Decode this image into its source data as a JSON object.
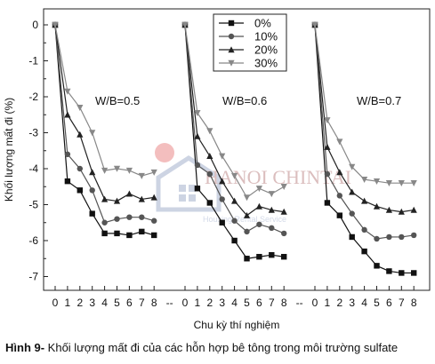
{
  "chart_data": {
    "type": "line",
    "ylabel": "Khối lượng mất đi (%)",
    "xlabel": "Chu kỳ thí nghiệm",
    "ylim": [
      -7.5,
      0.2
    ],
    "yticks": [
      0,
      -1,
      -2,
      -3,
      -4,
      -5,
      -6,
      -7
    ],
    "x_ticks": [
      "0",
      "1",
      "2",
      "3",
      "4",
      "5",
      "6",
      "7",
      "8"
    ],
    "break_label": "--",
    "legend": {
      "placement": "top-center",
      "entries": [
        "0%",
        "10%",
        "20%",
        "30%"
      ]
    },
    "series_styles": [
      {
        "name": "0%",
        "color": "#111111",
        "marker": "square"
      },
      {
        "name": "10%",
        "color": "#555555",
        "marker": "circle"
      },
      {
        "name": "20%",
        "color": "#222222",
        "marker": "triangle-up"
      },
      {
        "name": "30%",
        "color": "#888888",
        "marker": "triangle-down"
      }
    ],
    "panels": [
      {
        "label": "W/B=0.5",
        "series": [
          {
            "name": "0%",
            "values": [
              0,
              -4.35,
              -4.6,
              -5.25,
              -5.8,
              -5.8,
              -5.85,
              -5.75,
              -5.85
            ]
          },
          {
            "name": "10%",
            "values": [
              0,
              -3.6,
              -4.0,
              -4.6,
              -5.5,
              -5.4,
              -5.35,
              -5.35,
              -5.45
            ]
          },
          {
            "name": "20%",
            "values": [
              0,
              -2.5,
              -3.05,
              -4.1,
              -4.85,
              -4.9,
              -4.7,
              -4.85,
              -4.8
            ]
          },
          {
            "name": "30%",
            "values": [
              0,
              -1.85,
              -2.3,
              -3.0,
              -4.05,
              -4.0,
              -4.05,
              -4.2,
              -4.1
            ]
          }
        ]
      },
      {
        "label": "W/B=0.6",
        "series": [
          {
            "name": "0%",
            "values": [
              0,
              -4.55,
              -4.95,
              -5.5,
              -6.0,
              -6.5,
              -6.45,
              -6.4,
              -6.45
            ]
          },
          {
            "name": "10%",
            "values": [
              0,
              -3.9,
              -4.15,
              -4.85,
              -5.45,
              -5.75,
              -5.55,
              -5.65,
              -5.8
            ]
          },
          {
            "name": "20%",
            "values": [
              0,
              -3.1,
              -3.65,
              -4.35,
              -4.9,
              -5.3,
              -5.05,
              -5.15,
              -5.2
            ]
          },
          {
            "name": "30%",
            "values": [
              0,
              -2.45,
              -2.95,
              -3.65,
              -4.2,
              -4.8,
              -4.55,
              -4.7,
              -4.5
            ]
          }
        ]
      },
      {
        "label": "W/B=0.7",
        "series": [
          {
            "name": "0%",
            "values": [
              0,
              -4.95,
              -5.3,
              -5.9,
              -6.3,
              -6.7,
              -6.85,
              -6.9,
              -6.9
            ]
          },
          {
            "name": "10%",
            "values": [
              0,
              -4.15,
              -4.75,
              -5.25,
              -5.7,
              -5.95,
              -5.9,
              -5.9,
              -5.85
            ]
          },
          {
            "name": "20%",
            "values": [
              0,
              -3.4,
              -4.1,
              -4.65,
              -4.9,
              -5.05,
              -5.15,
              -5.2,
              -5.15
            ]
          },
          {
            "name": "30%",
            "values": [
              0,
              -2.65,
              -3.25,
              -3.95,
              -4.3,
              -4.35,
              -4.4,
              -4.4,
              -4.4
            ]
          }
        ]
      }
    ]
  },
  "watermark": {
    "title": "HANOI CHINTAI",
    "subtitle": "Housing Rental Service"
  },
  "caption": {
    "label": "Hình 9-",
    "text": " Khối lượng mất đi của các hỗn hợp bê tông trong môi trường sulfate"
  }
}
